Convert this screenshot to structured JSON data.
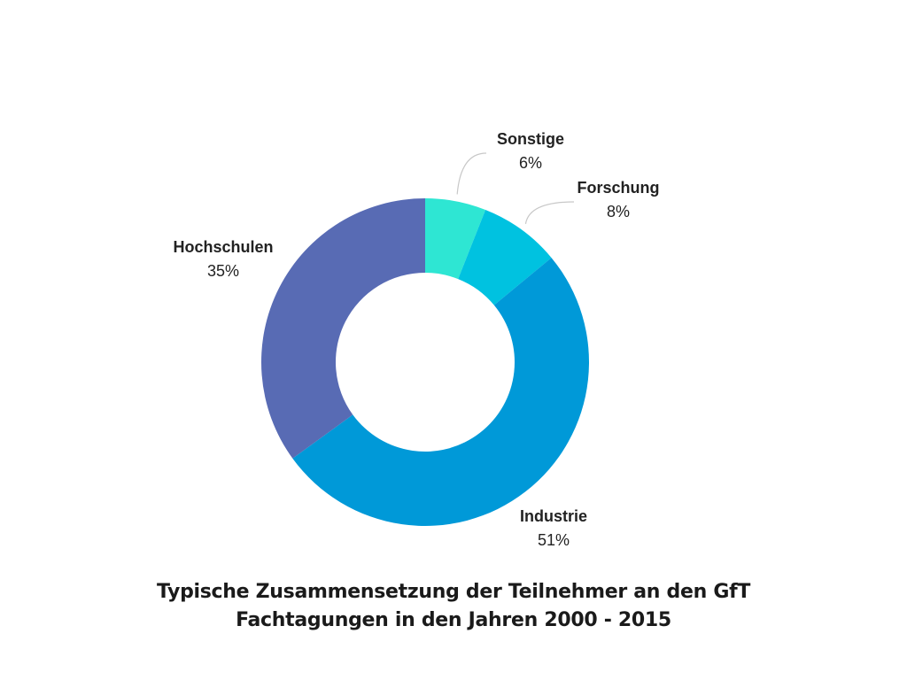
{
  "chart_data": {
    "type": "pie",
    "style": "donut",
    "categories": [
      "Sonstige",
      "Forschung",
      "Industrie",
      "Hochschulen"
    ],
    "values": [
      6,
      8,
      51,
      35
    ],
    "value_labels": [
      "6%",
      "8%",
      "51%",
      "35%"
    ],
    "colors": [
      "#2ee6d3",
      "#00c2e0",
      "#0099d8",
      "#586bb4"
    ],
    "start_angle_deg": 0,
    "direction": "clockwise",
    "legend": "none",
    "title_lines": [
      "Typische Zusammensetzung der Teilnehmer an den GfT",
      "Fachtagungen in den Jahren 2000 - 2015"
    ]
  }
}
